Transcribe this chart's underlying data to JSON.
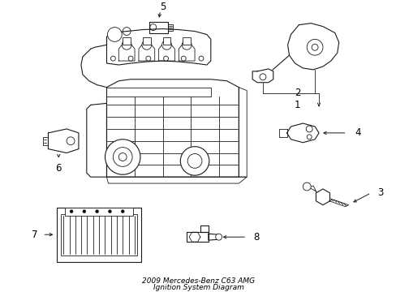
{
  "title": "2009 Mercedes-Benz C63 AMG\nIgnition System Diagram",
  "bg_color": "#ffffff",
  "line_color": "#1a1a1a",
  "text_color": "#000000",
  "label_fontsize": 8.5,
  "title_fontsize": 6.5,
  "figsize": [
    4.89,
    3.6
  ],
  "dpi": 100
}
